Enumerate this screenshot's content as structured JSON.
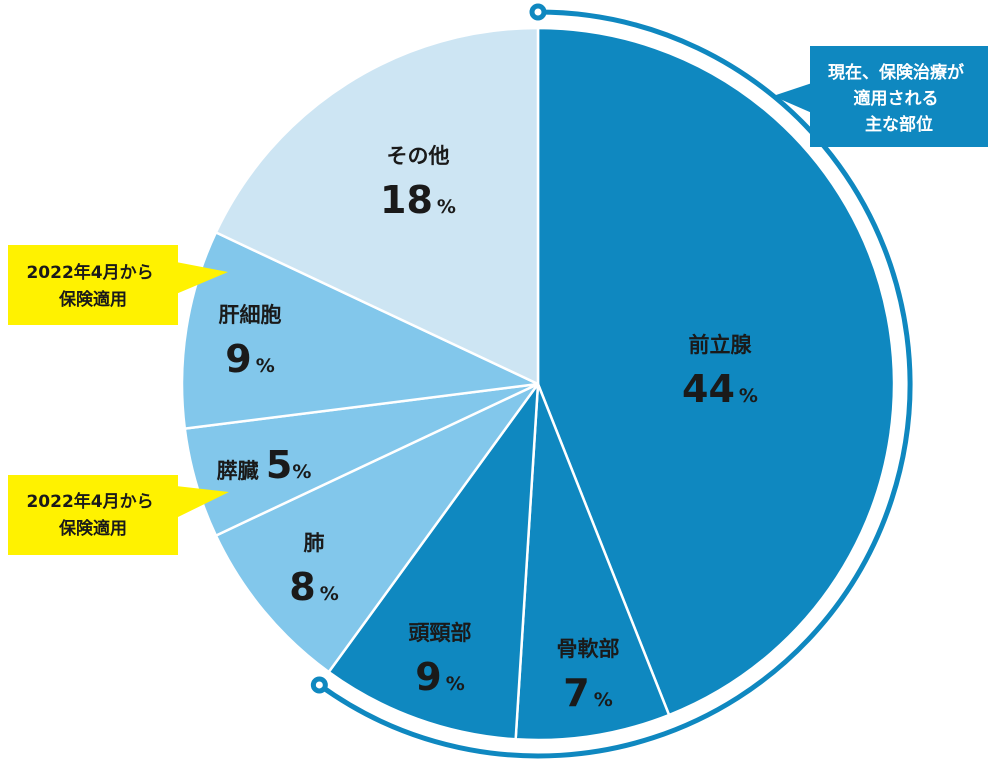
{
  "chart_data": {
    "type": "pie",
    "start_angle_deg": 0,
    "direction": "clockwise",
    "unit": "%",
    "slices": [
      {
        "label": "前立腺",
        "value": 44,
        "color": "#0f88c0",
        "text_color": "#ffffff"
      },
      {
        "label": "骨軟部",
        "value": 7,
        "color": "#0f88c0",
        "text_color": "#ffffff"
      },
      {
        "label": "頭頸部",
        "value": 9,
        "color": "#0f88c0",
        "text_color": "#ffffff"
      },
      {
        "label": "肺",
        "value": 8,
        "color": "#82c7eb",
        "text_color": "#1a1a1a"
      },
      {
        "label": "膵臓",
        "value": 5,
        "color": "#82c7eb",
        "text_color": "#1a1a1a"
      },
      {
        "label": "肝細胞",
        "value": 9,
        "color": "#82c7eb",
        "text_color": "#1a1a1a"
      },
      {
        "label": "その他",
        "value": 18,
        "color": "#cde5f3",
        "text_color": "#1a1a1a"
      }
    ],
    "highlight_arc": {
      "covers": [
        "前立腺",
        "骨軟部",
        "頭頸部"
      ],
      "color": "#0f88c0"
    },
    "callouts": [
      {
        "lines": [
          "現在、保険治療が",
          "適用される",
          "主な部位"
        ],
        "target": "前立腺",
        "bg": "#0f88c0",
        "fg": "#ffffff"
      },
      {
        "lines": [
          "2022年4月から",
          "保険適用"
        ],
        "target": "肝細胞",
        "bg": "#fff200",
        "fg": "#1a1a1a"
      },
      {
        "lines": [
          "2022年4月から",
          "保険適用"
        ],
        "target": "膵臓",
        "bg": "#fff200",
        "fg": "#1a1a1a"
      }
    ]
  }
}
